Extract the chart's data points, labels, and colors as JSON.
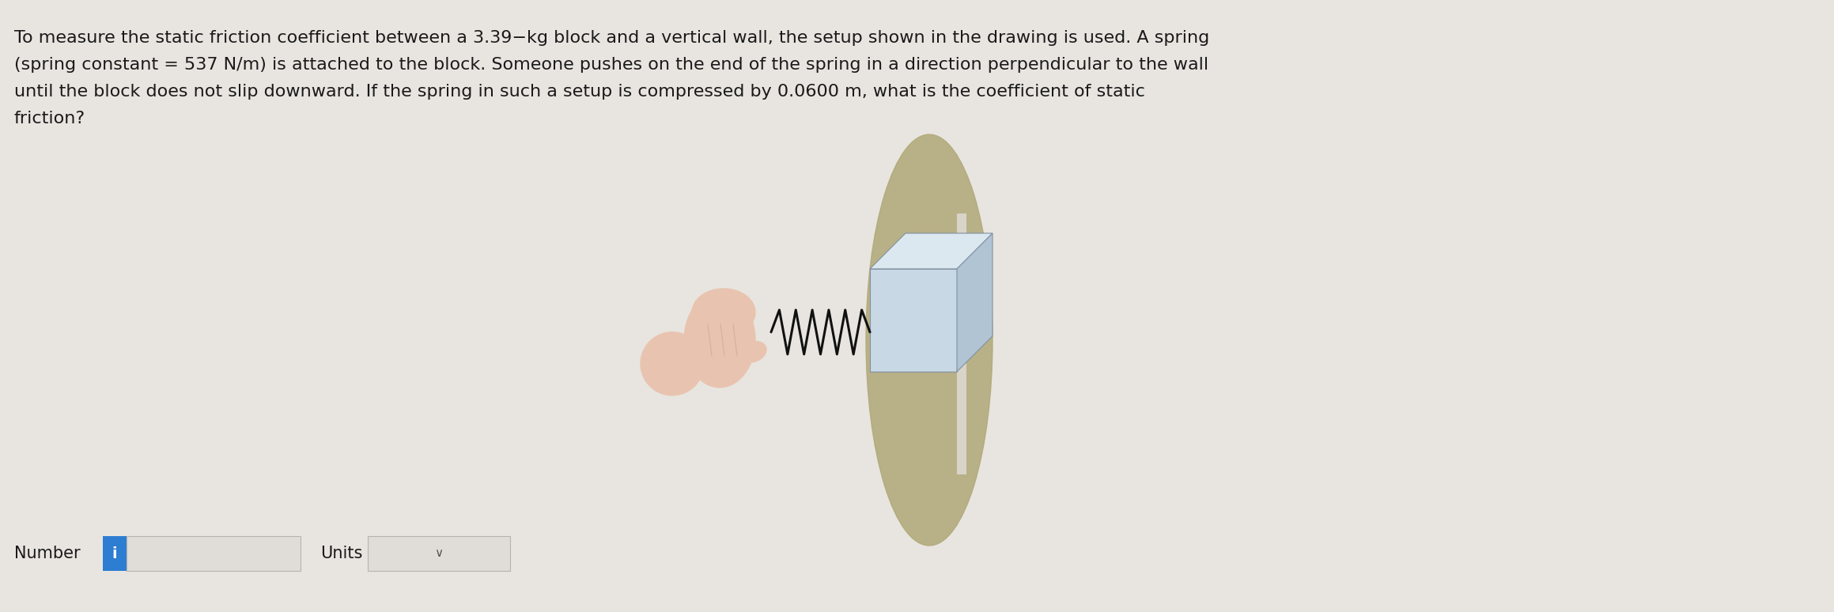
{
  "background_color": "#e8e5e0",
  "text_color": "#1a1a1a",
  "problem_text_line1": "To measure the static friction coefficient between a 3.39−kg block and a vertical wall, the setup shown in the drawing is used. A spring",
  "problem_text_line2": "(spring constant = 537 N/m) is attached to the block. Someone pushes on the end of the spring in a direction perpendicular to the wall",
  "problem_text_line3": "until the block does not slip downward. If the spring in such a setup is compressed by 0.0600 m, what is the coefficient of static",
  "problem_text_line4": "friction?",
  "number_label": "Number",
  "units_label": "Units",
  "info_button_color": "#2d7dd2",
  "info_button_text": "i",
  "input_box_color": "#e0ddd8",
  "units_box_color": "#e0ddd8",
  "font_size_problem": 16,
  "font_size_labels": 15,
  "figsize": [
    23.19,
    7.74
  ],
  "dpi": 100,
  "hand_color": "#e8c4b0",
  "hand_line_color": "#c8a090",
  "spring_color": "#111111",
  "block_front_color": "#c8d8e4",
  "block_top_color": "#dce8f0",
  "block_right_color": "#b0c4d4",
  "block_edge_color": "#8090a0",
  "shadow_color": "#b0a878",
  "wall_color": "#d8d4c8"
}
